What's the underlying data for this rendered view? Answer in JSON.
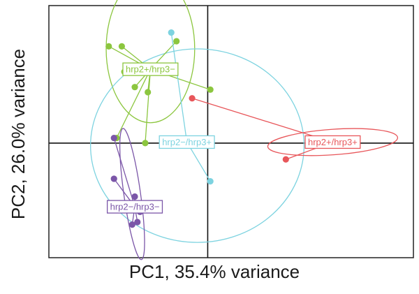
{
  "chart_data": {
    "type": "scatter",
    "title": "",
    "xlabel": "PC1, 35.4% variance",
    "ylabel": "PC2, 26.0% variance",
    "xlim": [
      -3.05,
      3.95
    ],
    "ylim": [
      -2.25,
      2.7
    ],
    "grid": false,
    "legend": "none",
    "reference_lines": {
      "x": 0,
      "y": 0
    },
    "series": [
      {
        "name": "hrp2+/hrp3−",
        "color": "#8cc63f",
        "centroid": [
          -1.1,
          1.45
        ],
        "ellipse": {
          "cx": -1.1,
          "cy": 1.85,
          "rx": 0.85,
          "ry": 1.45,
          "angle": 0
        },
        "points": [
          {
            "x": -1.9,
            "y": 1.9
          },
          {
            "x": -1.65,
            "y": 1.9
          },
          {
            "x": -1.6,
            "y": 1.4
          },
          {
            "x": -0.6,
            "y": 2.0
          },
          {
            "x": -1.4,
            "y": 1.1
          },
          {
            "x": -1.15,
            "y": 1.0
          },
          {
            "x": 0.05,
            "y": 1.05
          },
          {
            "x": -1.75,
            "y": 0.1
          },
          {
            "x": -1.2,
            "y": 0.0
          }
        ]
      },
      {
        "name": "hrp2−/hrp3+",
        "color": "#7dd3e0",
        "centroid": [
          -0.4,
          0.02
        ],
        "ellipse": {
          "cx": -0.2,
          "cy": -0.05,
          "rx": 2.05,
          "ry": 1.9,
          "angle": 0
        },
        "points": [
          {
            "x": -0.7,
            "y": 2.17
          },
          {
            "x": 0.05,
            "y": -0.75
          }
        ]
      },
      {
        "name": "hrp2+/hrp3+",
        "color": "#e8565a",
        "centroid": [
          2.4,
          0.02
        ],
        "ellipse": {
          "cx": 2.4,
          "cy": 0.02,
          "rx": 1.25,
          "ry": 0.25,
          "angle": -4
        },
        "points": [
          {
            "x": -0.3,
            "y": 0.88
          },
          {
            "x": 1.5,
            "y": -0.32
          }
        ]
      },
      {
        "name": "hrp2−/hrp3−",
        "color": "#7b56a8",
        "centroid": [
          -1.4,
          -1.25
        ],
        "ellipse": {
          "cx": -1.45,
          "cy": -1.0,
          "rx": 0.16,
          "ry": 1.3,
          "angle": -8
        },
        "points": [
          {
            "x": -1.8,
            "y": 0.1
          },
          {
            "x": -1.8,
            "y": -0.7
          },
          {
            "x": -1.4,
            "y": -1.05
          },
          {
            "x": -1.3,
            "y": -1.35
          },
          {
            "x": -1.35,
            "y": -1.55
          },
          {
            "x": -1.45,
            "y": -1.6
          }
        ]
      }
    ]
  }
}
